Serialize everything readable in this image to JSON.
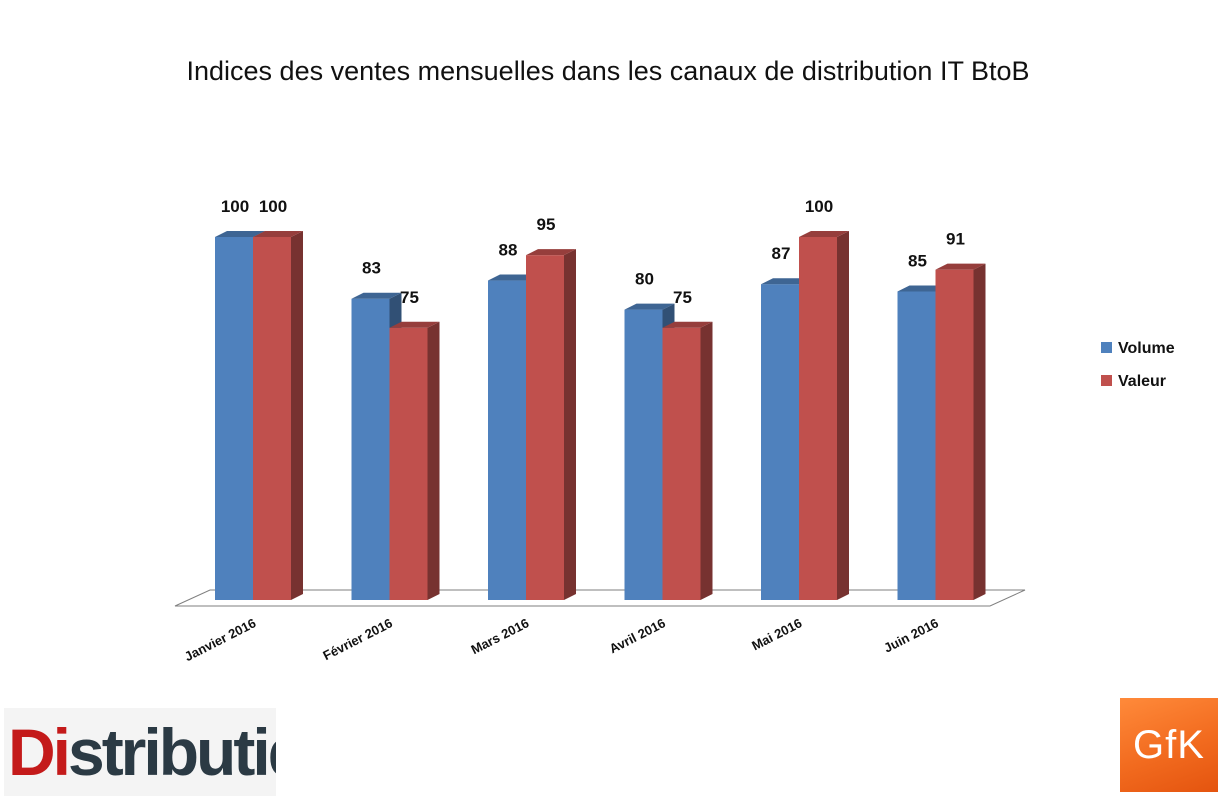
{
  "chart_data": {
    "type": "bar",
    "title": "Indices des ventes mensuelles dans les canaux de distribution IT BtoB",
    "categories": [
      "Janvier 2016",
      "Février 2016",
      "Mars 2016",
      "Avril 2016",
      "Mai 2016",
      "Juin 2016"
    ],
    "series": [
      {
        "name": "Volume",
        "values": [
          100,
          83,
          88,
          80,
          87,
          85
        ],
        "color": "#4f81bd"
      },
      {
        "name": "Valeur",
        "values": [
          100,
          75,
          95,
          75,
          100,
          91
        ],
        "color": "#c0504d"
      }
    ],
    "ylim": [
      0,
      100
    ],
    "grid": false,
    "legend_position": "right",
    "data_labels": true
  },
  "logos": {
    "left": {
      "prefix": "Di",
      "suffix": "stributique"
    },
    "right": {
      "text": "GfK"
    }
  }
}
